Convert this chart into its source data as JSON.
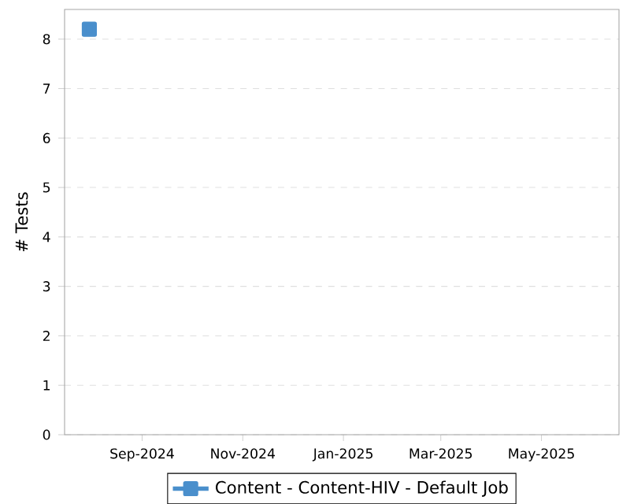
{
  "chart_data": {
    "type": "line",
    "ylabel": "# Tests",
    "x": [
      "2024-07-31"
    ],
    "series": [
      {
        "name": "Content - Content-HIV - Default Job",
        "color": "#4a8fcc",
        "values": [
          8.2
        ]
      }
    ],
    "xlim": [
      "2024-07-16",
      "2025-06-17"
    ],
    "xticks": [
      {
        "value": "2024-09-01",
        "label": "Sep-2024"
      },
      {
        "value": "2024-11-01",
        "label": "Nov-2024"
      },
      {
        "value": "2025-01-01",
        "label": "Jan-2025"
      },
      {
        "value": "2025-03-01",
        "label": "Mar-2025"
      },
      {
        "value": "2025-05-01",
        "label": "May-2025"
      }
    ],
    "ylim": [
      0,
      8.6
    ],
    "yticks": [
      0,
      1,
      2,
      3,
      4,
      5,
      6,
      7,
      8
    ],
    "grid": "y",
    "legend": "bottom",
    "marker": "square",
    "line_style": "solid"
  }
}
